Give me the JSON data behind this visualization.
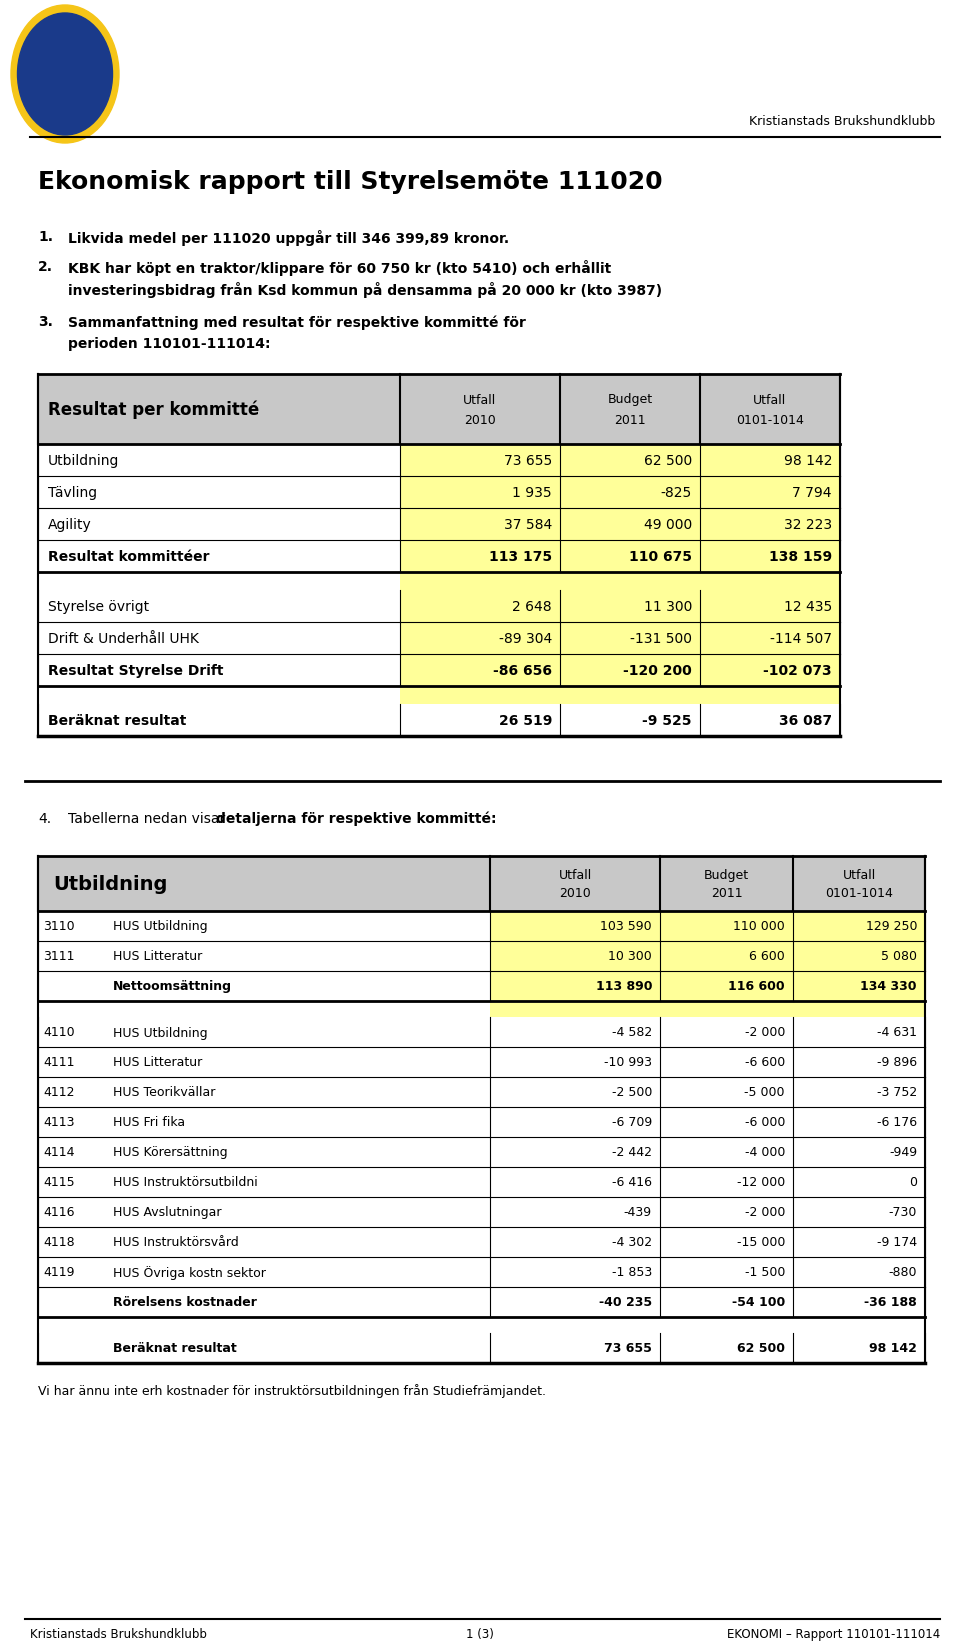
{
  "page_width": 9.6,
  "page_height": 16.49,
  "bg_color": "#ffffff",
  "header_org_right": "Kristianstads Brukshundklubb",
  "main_title": "Ekonomisk rapport till Styrelsemöte 111020",
  "bullet1": "Likvida medel per 111020 uppgår till 346 399,89 kronor.",
  "bullet2_line1": "KBK har köpt en traktor/klippare för 60 750 kr (kto 5410) och erhållit",
  "bullet2_line2": "investeringsbidrag från Ksd kommun på densamma på 20 000 kr (kto 3987)",
  "bullet3_line1": "Sammanfattning med resultat för respektive kommitté för",
  "bullet3_line2": "perioden 110101-111014:",
  "table1_header_col0": "Resultat per kommitté",
  "table1_header_col1_line1": "Utfall",
  "table1_header_col1_line2": "2010",
  "table1_header_col2_line1": "Budget",
  "table1_header_col2_line2": "2011",
  "table1_header_col3_line1": "Utfall",
  "table1_header_col3_line2": "0101-1014",
  "table1_rows": [
    {
      "label": "Utbildning",
      "v1": "73 655",
      "v2": "62 500",
      "v3": "98 142",
      "bold": false,
      "yellow": true,
      "spacer": false
    },
    {
      "label": "Tävling",
      "v1": "1 935",
      "v2": "-825",
      "v3": "7 794",
      "bold": false,
      "yellow": true,
      "spacer": false
    },
    {
      "label": "Agility",
      "v1": "37 584",
      "v2": "49 000",
      "v3": "32 223",
      "bold": false,
      "yellow": true,
      "spacer": false
    },
    {
      "label": "Resultat kommittéer",
      "v1": "113 175",
      "v2": "110 675",
      "v3": "138 159",
      "bold": true,
      "yellow": true,
      "spacer": false
    },
    {
      "label": "",
      "v1": "",
      "v2": "",
      "v3": "",
      "bold": false,
      "yellow": true,
      "spacer": true
    },
    {
      "label": "Styrelse övrigt",
      "v1": "2 648",
      "v2": "11 300",
      "v3": "12 435",
      "bold": false,
      "yellow": true,
      "spacer": false
    },
    {
      "label": "Drift & Underhåll UHK",
      "v1": "-89 304",
      "v2": "-131 500",
      "v3": "-114 507",
      "bold": false,
      "yellow": true,
      "spacer": false
    },
    {
      "label": "Resultat Styrelse Drift",
      "v1": "-86 656",
      "v2": "-120 200",
      "v3": "-102 073",
      "bold": true,
      "yellow": true,
      "spacer": false
    },
    {
      "label": "",
      "v1": "",
      "v2": "",
      "v3": "",
      "bold": false,
      "yellow": true,
      "spacer": true
    },
    {
      "label": "Beräknat resultat",
      "v1": "26 519",
      "v2": "-9 525",
      "v3": "36 087",
      "bold": true,
      "yellow": false,
      "spacer": false
    }
  ],
  "section4_prefix": "Tabellerna nedan visar ",
  "section4_bold": "detaljerna för respektive kommitté:",
  "table2_header_col0": "Utbildning",
  "table2_header_col1_line1": "Utfall",
  "table2_header_col1_line2": "2010",
  "table2_header_col2_line1": "Budget",
  "table2_header_col2_line2": "2011",
  "table2_header_col3_line1": "Utfall",
  "table2_header_col3_line2": "0101-1014",
  "table2_rows": [
    {
      "code": "3110",
      "label": "HUS Utbildning",
      "v1": "103 590",
      "v2": "110 000",
      "v3": "129 250",
      "bold": false,
      "yellow": true,
      "spacer": false
    },
    {
      "code": "3111",
      "label": "HUS Litteratur",
      "v1": "10 300",
      "v2": "6 600",
      "v3": "5 080",
      "bold": false,
      "yellow": true,
      "spacer": false
    },
    {
      "code": "",
      "label": "Nettoomsättning",
      "v1": "113 890",
      "v2": "116 600",
      "v3": "134 330",
      "bold": true,
      "yellow": true,
      "spacer": false
    },
    {
      "code": "",
      "label": "",
      "v1": "",
      "v2": "",
      "v3": "",
      "bold": false,
      "yellow": true,
      "spacer": true
    },
    {
      "code": "4110",
      "label": "HUS Utbildning",
      "v1": "-4 582",
      "v2": "-2 000",
      "v3": "-4 631",
      "bold": false,
      "yellow": false,
      "spacer": false
    },
    {
      "code": "4111",
      "label": "HUS Litteratur",
      "v1": "-10 993",
      "v2": "-6 600",
      "v3": "-9 896",
      "bold": false,
      "yellow": false,
      "spacer": false
    },
    {
      "code": "4112",
      "label": "HUS Teorikvällar",
      "v1": "-2 500",
      "v2": "-5 000",
      "v3": "-3 752",
      "bold": false,
      "yellow": false,
      "spacer": false
    },
    {
      "code": "4113",
      "label": "HUS Fri fika",
      "v1": "-6 709",
      "v2": "-6 000",
      "v3": "-6 176",
      "bold": false,
      "yellow": false,
      "spacer": false
    },
    {
      "code": "4114",
      "label": "HUS Körersättning",
      "v1": "-2 442",
      "v2": "-4 000",
      "v3": "-949",
      "bold": false,
      "yellow": false,
      "spacer": false
    },
    {
      "code": "4115",
      "label": "HUS Instruktörsutbildni",
      "v1": "-6 416",
      "v2": "-12 000",
      "v3": "0",
      "bold": false,
      "yellow": false,
      "spacer": false
    },
    {
      "code": "4116",
      "label": "HUS Avslutningar",
      "v1": "-439",
      "v2": "-2 000",
      "v3": "-730",
      "bold": false,
      "yellow": false,
      "spacer": false
    },
    {
      "code": "4118",
      "label": "HUS Instruktörsvård",
      "v1": "-4 302",
      "v2": "-15 000",
      "v3": "-9 174",
      "bold": false,
      "yellow": false,
      "spacer": false
    },
    {
      "code": "4119",
      "label": "HUS Övriga kostn sektor",
      "v1": "-1 853",
      "v2": "-1 500",
      "v3": "-880",
      "bold": false,
      "yellow": false,
      "spacer": false
    },
    {
      "code": "",
      "label": "Rörelsens kostnader",
      "v1": "-40 235",
      "v2": "-54 100",
      "v3": "-36 188",
      "bold": true,
      "yellow": false,
      "spacer": false
    },
    {
      "code": "",
      "label": "",
      "v1": "",
      "v2": "",
      "v3": "",
      "bold": false,
      "yellow": false,
      "spacer": true
    },
    {
      "code": "",
      "label": "Beräknat resultat",
      "v1": "73 655",
      "v2": "62 500",
      "v3": "98 142",
      "bold": true,
      "yellow": false,
      "spacer": false
    }
  ],
  "footer_note": "Vi har ännu inte erh kostnader för instruktörsutbildningen från Studiefrämjandet.",
  "footer_left": "Kristianstads Brukshundklubb",
  "footer_center": "1 (3)",
  "footer_right": "EKONOMI – Rapport 110101-111014",
  "yellow_color": "#ffff99",
  "header_gray": "#c8c8c8",
  "text_color": "#000000"
}
